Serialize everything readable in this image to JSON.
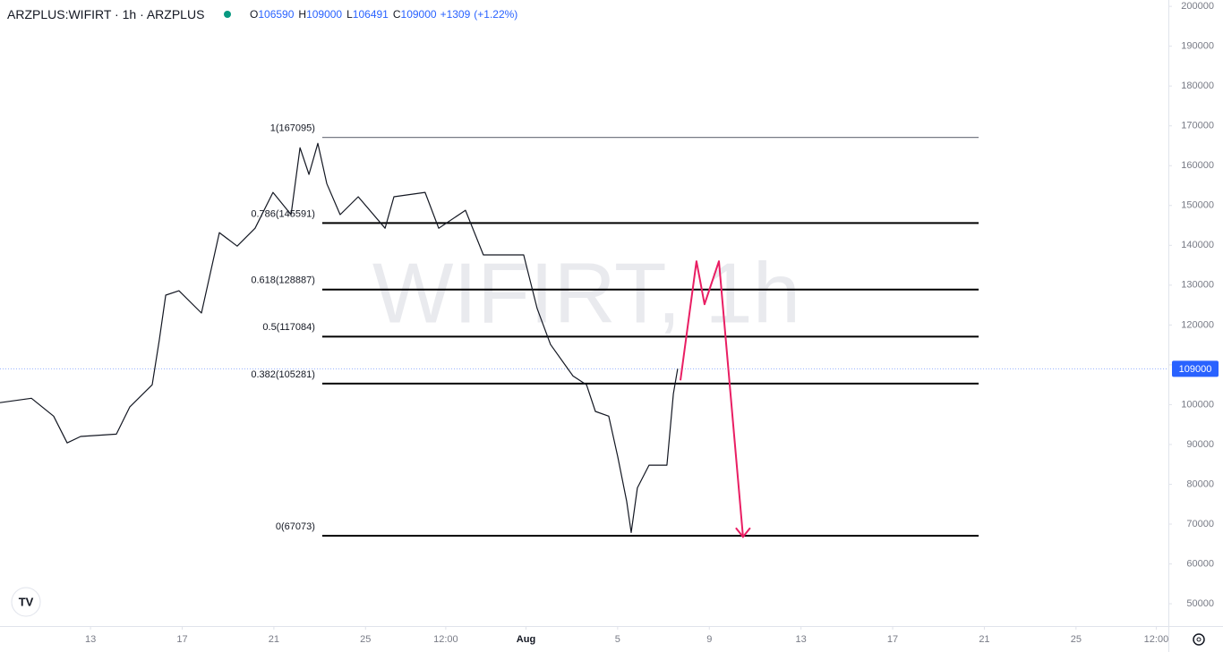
{
  "header": {
    "symbol": "ARZPLUS:WIFIRT · 1h · ARZPLUS",
    "ohlc": [
      {
        "key": "O",
        "value": 106590
      },
      {
        "key": "H",
        "value": 109000
      },
      {
        "key": "L",
        "value": 106491
      },
      {
        "key": "C",
        "value": 109000
      }
    ],
    "change": "+1309",
    "change_pct": "(+1.22%)"
  },
  "chart_data": {
    "type": "line",
    "watermark": "WIFIRT, 1h",
    "xlim": [
      9.05,
      60.03
    ],
    "ylim": [
      44400,
      201600
    ],
    "xticks": [
      13,
      17,
      21,
      25,
      {
        "value": 28.5,
        "label": "12:00"
      },
      {
        "value": 32,
        "label": "Aug"
      },
      {
        "value": 36,
        "label": "5"
      },
      {
        "value": 40,
        "label": "9"
      },
      {
        "value": 44,
        "label": "13"
      },
      {
        "value": 48,
        "label": "17"
      },
      {
        "value": 52,
        "label": "21"
      },
      {
        "value": 56,
        "label": "25"
      },
      {
        "value": 59.5,
        "label": "12:00"
      }
    ],
    "yticks": [
      50000,
      60000,
      70000,
      80000,
      90000,
      100000,
      110000,
      120000,
      130000,
      140000,
      150000,
      160000,
      170000,
      180000,
      190000,
      200000
    ],
    "series": [
      {
        "color": "#131722",
        "x": [
          9.05,
          10.42,
          11.39,
          11.98,
          12.57,
          14.13,
          14.71,
          15.69,
          16.0,
          16.28,
          16.86,
          17.84,
          18.62,
          19.4,
          20.18,
          20.96,
          21.75,
          22.14,
          22.53,
          22.92,
          23.31,
          23.89,
          24.68,
          25.85,
          26.24,
          27.6,
          28.19,
          29.36,
          30.14,
          31.9,
          32.49,
          33.07,
          34.05,
          34.64,
          35.03,
          35.61,
          36.0,
          36.39,
          36.59,
          36.86,
          37.37,
          38.15,
          38.43,
          38.62
        ],
        "values": [
          100500,
          101600,
          97100,
          90400,
          92000,
          92600,
          99400,
          105000,
          116200,
          127500,
          128600,
          123000,
          143200,
          139800,
          144300,
          153300,
          147700,
          164500,
          157800,
          165600,
          155500,
          147700,
          152200,
          144300,
          152200,
          153300,
          144300,
          148800,
          137600,
          137600,
          124100,
          115100,
          107200,
          105000,
          98300,
          97100,
          87000,
          75800,
          67900,
          79100,
          84800,
          84800,
          102700,
          109000
        ]
      },
      {
        "color": "#e91e63",
        "x": [
          38.74,
          39.44,
          39.79,
          40.42,
          41.47
        ],
        "values": [
          106100,
          136000,
          125200,
          136000,
          66800
        ]
      }
    ],
    "fib_x": [
      23.11,
      51.75
    ],
    "fib_levels": [
      {
        "label": "1(167095)",
        "value": 167095
      },
      {
        "label": "0.786(145591)",
        "value": 145591
      },
      {
        "label": "0.618(128887)",
        "value": 128887
      },
      {
        "label": "0.5(117084)",
        "value": 117084
      },
      {
        "label": "0.382(105281)",
        "value": 105281
      },
      {
        "label": "0(67073)",
        "value": 67073
      }
    ],
    "last_price": 109000
  }
}
